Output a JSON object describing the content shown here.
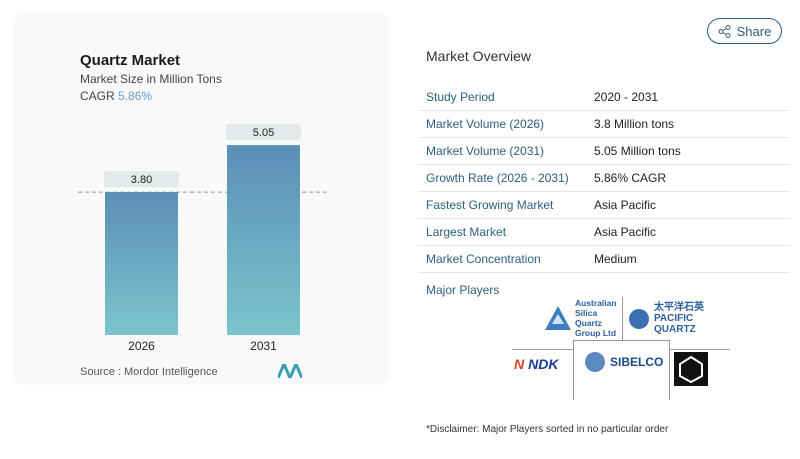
{
  "header": {
    "share_label": "Share"
  },
  "chart_card": {
    "title": "Quartz Market",
    "subtitle": "Market Size in Million Tons",
    "cagr_label": "CAGR",
    "cagr_value": "5.86%",
    "source": "Source :  Mordor Intelligence"
  },
  "chart_data": {
    "type": "bar",
    "categories": [
      "2026",
      "2031"
    ],
    "values": [
      3.8,
      5.05
    ],
    "data_labels": [
      "3.80",
      "5.05"
    ],
    "ylim": [
      0,
      5.3
    ],
    "grid": false,
    "colors": {
      "bar_top": "#5b8fb7",
      "bar_bottom": "#7cc4cc"
    }
  },
  "overview": {
    "title": "Market Overview",
    "rows": [
      {
        "label": "Study Period",
        "value": "2020 - 2031"
      },
      {
        "label": "Market Volume (2026)",
        "value": "3.8 Million tons"
      },
      {
        "label": "Market Volume (2031)",
        "value": "5.05 Million tons"
      },
      {
        "label": "Growth Rate (2026 - 2031)",
        "value": "5.86% CAGR"
      },
      {
        "label": "Fastest Growing Market",
        "value": "Asia Pacific"
      },
      {
        "label": "Largest Market",
        "value": "Asia Pacific"
      },
      {
        "label": "Market Concentration",
        "value": "Medium"
      }
    ],
    "major_players_label": "Major Players",
    "players": [
      "Australian Silica Quartz Group Ltd",
      "太平洋石英 PACIFIC QUARTZ",
      "NDK",
      "SIBELCO",
      "Quartz logo"
    ]
  },
  "disclaimer": "*Disclaimer: Major Players sorted in no particular order"
}
